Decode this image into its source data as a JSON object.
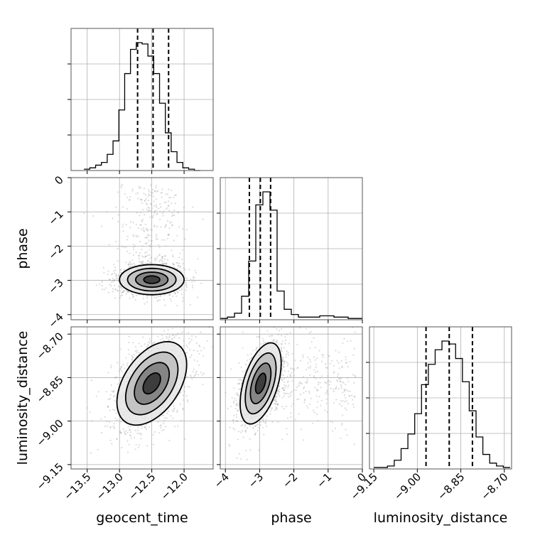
{
  "chart_data": {
    "type": "corner",
    "parameters": [
      "geocent_time",
      "phase",
      "luminosity_distance"
    ],
    "axes": {
      "geocent_time": {
        "label": "geocent_time",
        "range": [
          -13.75,
          -11.55
        ],
        "ticks": [
          -13.5,
          -13.0,
          -12.5,
          -12.0
        ],
        "tick_labels": [
          "−13.5",
          "−13.0",
          "−12.5",
          "−12.0"
        ]
      },
      "phase": {
        "label": "phase",
        "range": [
          -4.15,
          0
        ],
        "ticks": [
          -4,
          -3,
          -2,
          -1,
          0
        ],
        "tick_labels": [
          "−4",
          "−3",
          "−2",
          "−1",
          "0"
        ]
      },
      "luminosity_distance": {
        "label": "luminosity_distance",
        "range": [
          -9.165,
          -8.675
        ],
        "ticks": [
          -9.15,
          -9.0,
          -8.85,
          -8.7
        ],
        "tick_labels": [
          "−9.15",
          "−9.00",
          "−8.85",
          "−8.70"
        ]
      }
    },
    "histograms": [
      {
        "parameter": "geocent_time",
        "bin_range": [
          -13.55,
          -11.75
        ],
        "counts": [
          1,
          2,
          4,
          6,
          12,
          22,
          45,
          72,
          90,
          95,
          94,
          85,
          72,
          50,
          28,
          14,
          6,
          2,
          1,
          0
        ],
        "quantiles": [
          -12.72,
          -12.48,
          -12.24
        ]
      },
      {
        "parameter": "phase",
        "bin_range": [
          -4.15,
          0.0
        ],
        "counts": [
          1,
          2,
          5,
          18,
          45,
          88,
          98,
          84,
          22,
          8,
          4,
          2,
          2,
          2,
          3,
          3,
          2,
          2,
          1,
          1
        ],
        "quantiles": [
          -3.3,
          -2.98,
          -2.68
        ]
      },
      {
        "parameter": "luminosity_distance",
        "bin_range": [
          -9.15,
          -8.68
        ],
        "counts": [
          1,
          1,
          2,
          6,
          14,
          24,
          38,
          58,
          72,
          82,
          88,
          86,
          76,
          60,
          40,
          22,
          10,
          4,
          2,
          1
        ],
        "quantiles": [
          -8.97,
          -8.89,
          -8.81
        ]
      }
    ],
    "joint": [
      {
        "x": "geocent_time",
        "y": "phase",
        "center": [
          -12.5,
          -2.98
        ],
        "spread": [
          0.25,
          0.22
        ],
        "correlation": 0.0,
        "tail": {
          "towards": "up",
          "from": -2.7,
          "to": -0.2
        },
        "contour_levels_sigma": [
          0.5,
          1.0,
          1.5,
          2.0
        ]
      },
      {
        "x": "geocent_time",
        "y": "luminosity_distance",
        "center": [
          -12.5,
          -8.87
        ],
        "spread": [
          0.27,
          0.072
        ],
        "correlation": 0.45,
        "contour_levels_sigma": [
          0.5,
          1.0,
          1.5,
          2.0
        ]
      },
      {
        "x": "phase",
        "y": "luminosity_distance",
        "center": [
          -2.97,
          -8.87
        ],
        "spread": [
          0.3,
          0.07
        ],
        "correlation": 0.5,
        "tail": {
          "towards": "right",
          "from": -2.6,
          "to": -0.2
        },
        "contour_levels_sigma": [
          0.5,
          1.0,
          1.5,
          2.0
        ]
      }
    ],
    "grid": true
  }
}
